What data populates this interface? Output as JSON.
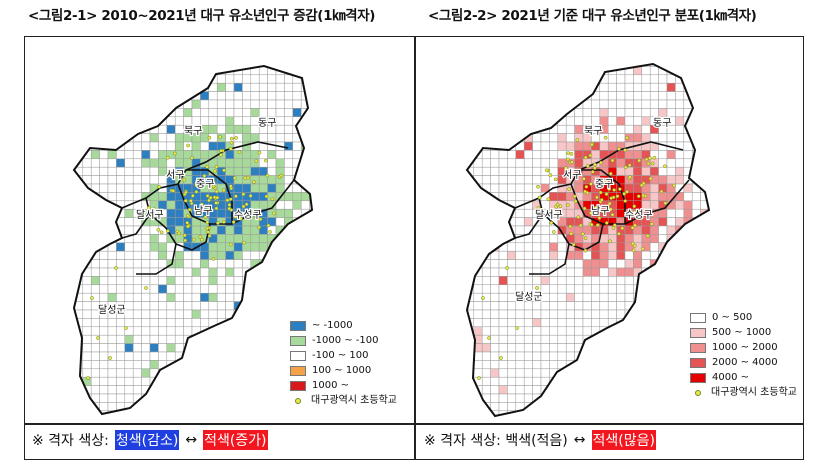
{
  "titles": {
    "left": "<그림2-1> 2010~2021년 대구 유소년인구 증감(1㎞격자)",
    "right": "<그림2-2> 2021년 기준 대구 유소년인구 분포(1㎞격자)"
  },
  "map_labels": {
    "buk": "북구",
    "dong": "동구",
    "seo": "서구",
    "jung": "중구",
    "dalseo": "달서구",
    "nam": "남구",
    "suseong": "수성구",
    "dalseong": "달성군"
  },
  "legend_left": [
    {
      "color": "#2e7fbf",
      "label": "~ -1000"
    },
    {
      "color": "#a6d99a",
      "label": "-1000 ~ -100"
    },
    {
      "color": "#ffffff",
      "label": "-100 ~ 100"
    },
    {
      "color": "#f5a14a",
      "label": "100 ~ 1000"
    },
    {
      "color": "#d7191c",
      "label": "1000 ~"
    }
  ],
  "legend_right": [
    {
      "color": "#ffffff",
      "label": "0 ~ 500"
    },
    {
      "color": "#f7c6c6",
      "label": "500 ~ 1000"
    },
    {
      "color": "#ef8f8f",
      "label": "1000 ~ 2000"
    },
    {
      "color": "#e45454",
      "label": "2000 ~ 4000"
    },
    {
      "color": "#e60000",
      "label": "4000 ~"
    }
  ],
  "school_label": "대구광역시 초등학교",
  "footer_left": {
    "prefix": "※ 격자 색상:",
    "blue": "청색(감소)",
    "arrow": "↔",
    "red": "적색(증가)"
  },
  "footer_right": {
    "prefix": "※ 격자 색상: 백색(적음)",
    "arrow": "↔",
    "red": "적색(많음)"
  }
}
